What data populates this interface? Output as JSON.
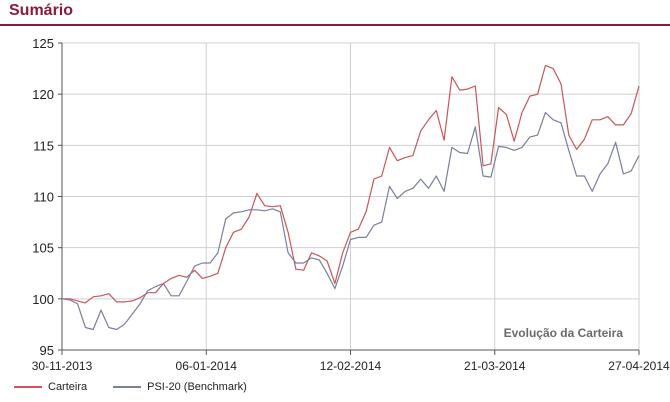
{
  "header": {
    "title": "Sumário",
    "accent_color": "#8b1a3a"
  },
  "chart_data": {
    "type": "line",
    "title": "Evolução da Carteira",
    "xlabel": "",
    "ylabel": "",
    "ylim": [
      95,
      125
    ],
    "yticks": [
      95,
      100,
      105,
      110,
      115,
      120,
      125
    ],
    "xlim": [
      0,
      148
    ],
    "x_tick_labels": [
      {
        "x": 0,
        "label": "30-11-2013"
      },
      {
        "x": 37,
        "label": "06-01-2014"
      },
      {
        "x": 74,
        "label": "12-02-2014"
      },
      {
        "x": 111,
        "label": "21-03-2014"
      },
      {
        "x": 148,
        "label": "27-04-2014"
      }
    ],
    "grid": true,
    "legend_position": "bottom-left",
    "series": [
      {
        "name": "Carteira",
        "color": "#c8575a",
        "x": [
          0,
          2,
          4,
          6,
          8,
          10,
          12,
          14,
          16,
          18,
          20,
          22,
          24,
          26,
          28,
          30,
          32,
          34,
          36,
          38,
          40,
          42,
          44,
          46,
          48,
          50,
          52,
          54,
          56,
          58,
          60,
          62,
          64,
          66,
          68,
          70,
          72,
          74,
          76,
          78,
          80,
          82,
          84,
          86,
          88,
          90,
          92,
          94,
          96,
          98,
          100,
          102,
          104,
          106,
          108,
          110,
          112,
          114,
          116,
          118,
          120,
          122,
          124,
          126,
          128,
          130,
          132,
          134,
          136,
          138,
          140,
          142,
          144,
          146,
          148
        ],
        "values": [
          100.0,
          100.0,
          99.8,
          99.6,
          100.2,
          100.3,
          100.5,
          99.7,
          99.7,
          99.8,
          100.1,
          100.6,
          100.6,
          101.5,
          102.0,
          102.3,
          102.1,
          102.8,
          102.0,
          102.2,
          102.5,
          105.0,
          106.5,
          106.8,
          108.0,
          110.3,
          109.1,
          109.0,
          109.1,
          106.5,
          102.9,
          102.8,
          104.5,
          104.2,
          103.7,
          101.5,
          104.5,
          106.5,
          106.8,
          108.5,
          111.7,
          112.0,
          114.8,
          113.5,
          113.8,
          114.0,
          116.4,
          117.5,
          118.4,
          115.5,
          121.7,
          120.4,
          120.5,
          120.8,
          113.0,
          113.2,
          118.7,
          118.0,
          115.4,
          118.2,
          119.8,
          120.0,
          122.8,
          122.5,
          121.0,
          116.0,
          114.6,
          115.6,
          117.5,
          117.5,
          117.8,
          117.0,
          117.0,
          118.1,
          120.8
        ]
      },
      {
        "name": "PSI-20 (Benchmark)",
        "color": "#7a7f9a",
        "x": [
          0,
          2,
          4,
          6,
          8,
          10,
          12,
          14,
          16,
          18,
          20,
          22,
          24,
          26,
          28,
          30,
          32,
          34,
          36,
          38,
          40,
          42,
          44,
          46,
          48,
          50,
          52,
          54,
          56,
          58,
          60,
          62,
          64,
          66,
          68,
          70,
          72,
          74,
          76,
          78,
          80,
          82,
          84,
          86,
          88,
          90,
          92,
          94,
          96,
          98,
          100,
          102,
          104,
          106,
          108,
          110,
          112,
          114,
          116,
          118,
          120,
          122,
          124,
          126,
          128,
          130,
          132,
          134,
          136,
          138,
          140,
          142,
          144,
          146,
          148
        ],
        "values": [
          100.0,
          99.9,
          99.5,
          97.2,
          97.0,
          98.9,
          97.2,
          97.0,
          97.5,
          98.5,
          99.5,
          100.8,
          101.2,
          101.5,
          100.3,
          100.3,
          101.7,
          103.2,
          103.5,
          103.5,
          104.5,
          107.8,
          108.4,
          108.5,
          108.7,
          108.7,
          108.6,
          108.8,
          108.5,
          104.5,
          103.5,
          103.5,
          104.0,
          103.8,
          102.5,
          101.0,
          103.2,
          105.8,
          106.0,
          106.0,
          107.2,
          107.5,
          111.0,
          109.8,
          110.5,
          110.8,
          111.7,
          110.8,
          112.0,
          110.5,
          114.8,
          114.3,
          114.2,
          116.8,
          112.0,
          111.9,
          114.9,
          114.8,
          114.5,
          114.8,
          115.8,
          116.0,
          118.2,
          117.5,
          117.2,
          114.5,
          112.0,
          112.0,
          110.5,
          112.2,
          113.2,
          115.3,
          112.2,
          112.5,
          114.0
        ]
      }
    ]
  }
}
